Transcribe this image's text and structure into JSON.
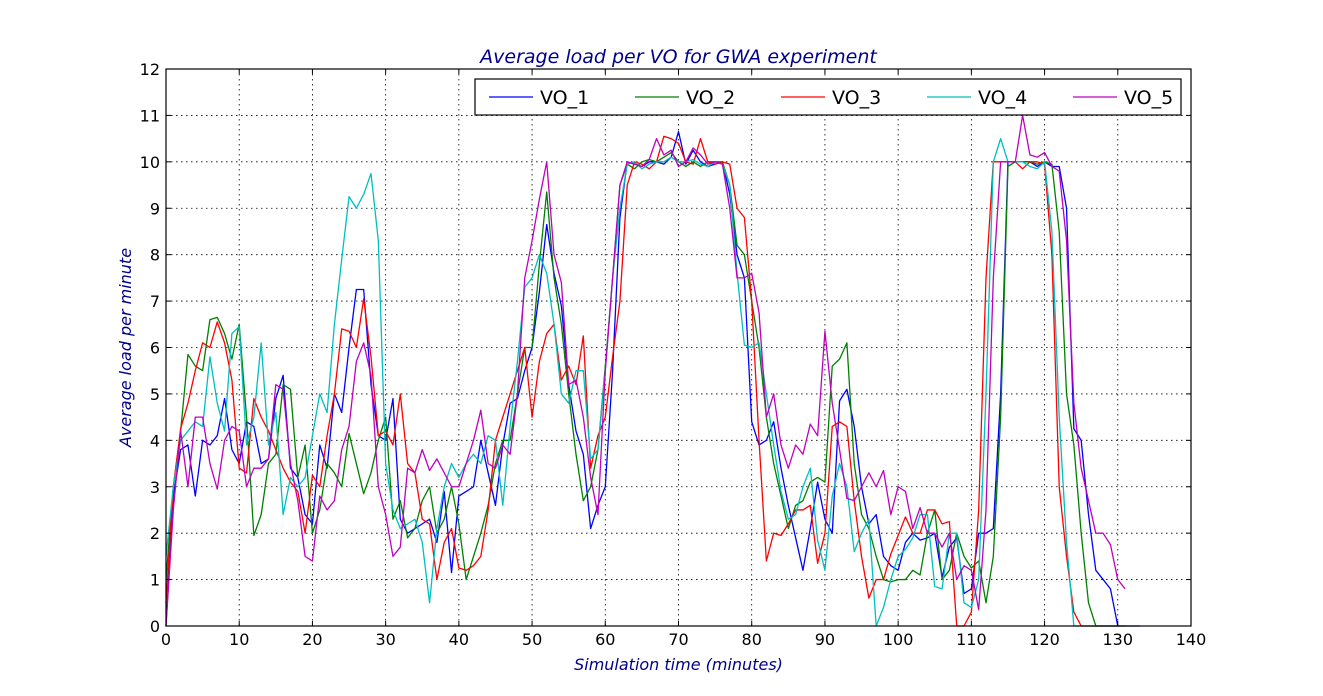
{
  "chart_data": {
    "type": "line",
    "title": "Average load per VO for GWA experiment",
    "xlabel": "Simulation time (minutes)",
    "ylabel": "Average load per minute",
    "xlim": [
      0,
      140
    ],
    "ylim": [
      0,
      12
    ],
    "x_ticks": [
      "0",
      "10",
      "20",
      "30",
      "40",
      "50",
      "60",
      "70",
      "80",
      "90",
      "100",
      "110",
      "120",
      "130",
      "140"
    ],
    "y_ticks": [
      "0",
      "1",
      "2",
      "3",
      "4",
      "5",
      "6",
      "7",
      "8",
      "9",
      "10",
      "11",
      "12"
    ],
    "grid": true,
    "legend_position": "top-right",
    "series": [
      {
        "name": "VO_1",
        "color": "#0000ff",
        "values": [
          0,
          2.8,
          3.8,
          3.9,
          2.8,
          4.0,
          3.9,
          4.1,
          4.9,
          3.8,
          3.5,
          4.4,
          4.3,
          3.5,
          3.6,
          4.9,
          5.4,
          3.4,
          3.2,
          2.4,
          2.2,
          3.9,
          3.4,
          5.0,
          4.6,
          6.0,
          7.25,
          7.25,
          5.2,
          4.1,
          4.0,
          4.9,
          2.3,
          2.0,
          2.1,
          2.2,
          2.3,
          1.8,
          2.9,
          1.15,
          2.8,
          2.9,
          3.0,
          4.0,
          3.3,
          2.6,
          3.9,
          4.8,
          4.9,
          5.5,
          6.0,
          7.2,
          8.65,
          7.6,
          6.9,
          5.2,
          4.2,
          3.7,
          2.1,
          2.6,
          3.0,
          5.5,
          8.8,
          10.0,
          9.95,
          9.9,
          10.0,
          10.0,
          9.95,
          10.1,
          10.65,
          9.95,
          10.25,
          10.0,
          9.9,
          9.95,
          10.0,
          9.3,
          8.0,
          7.5,
          4.4,
          3.9,
          4.0,
          4.4,
          3.4,
          2.6,
          1.9,
          1.2,
          2.1,
          3.1,
          2.3,
          2.0,
          4.85,
          5.1,
          4.3,
          3.0,
          2.2,
          2.4,
          1.5,
          1.3,
          1.2,
          1.8,
          2.0,
          1.85,
          1.9,
          2.0,
          1.05,
          1.7,
          1.9,
          0.7,
          0.8,
          2.0,
          2.0,
          2.1,
          5.0,
          10.0,
          10.0,
          10.0,
          10.0,
          9.9,
          10.0,
          9.9,
          9.9,
          9.0,
          4.25,
          4.0,
          2.4,
          1.2,
          1.0,
          0.8,
          0,
          0,
          0,
          0
        ]
      },
      {
        "name": "VO_2",
        "color": "#008000",
        "values": [
          1.0,
          3.0,
          4.2,
          5.85,
          5.6,
          5.5,
          6.6,
          6.65,
          6.3,
          5.75,
          6.5,
          4.5,
          1.95,
          2.4,
          3.5,
          3.7,
          5.2,
          5.1,
          3.2,
          3.9,
          2.0,
          2.5,
          3.5,
          3.3,
          3.0,
          4.15,
          3.5,
          2.85,
          3.3,
          4.0,
          4.5,
          2.3,
          2.7,
          1.9,
          2.1,
          2.7,
          3.0,
          2.0,
          2.3,
          3.0,
          2.2,
          1.0,
          1.5,
          2.0,
          2.6,
          3.5,
          4.0,
          4.0,
          5.0,
          6.0,
          6.0,
          7.8,
          9.35,
          7.5,
          6.5,
          5.0,
          3.7,
          2.7,
          3.0,
          3.8,
          5.6,
          7.5,
          9.5,
          9.95,
          9.85,
          10.0,
          10.05,
          10.0,
          10.1,
          10.2,
          10.0,
          9.9,
          10.0,
          9.9,
          10.0,
          10.0,
          10.0,
          9.5,
          8.2,
          8.0,
          7.0,
          6.0,
          4.5,
          3.5,
          2.8,
          2.1,
          2.6,
          2.7,
          3.1,
          3.2,
          3.1,
          5.6,
          5.75,
          6.1,
          3.5,
          2.4,
          2.1,
          1.5,
          1.0,
          0.95,
          1.0,
          1.0,
          1.2,
          1.1,
          2.0,
          2.5,
          1.0,
          1.2,
          2.0,
          1.5,
          1.25,
          1.4,
          0.5,
          1.5,
          4.5,
          9.9,
          10.0,
          10.0,
          10.0,
          9.95,
          10.0,
          9.95,
          8.5,
          5.0,
          3.9,
          2.0,
          0.5,
          0,
          0,
          0,
          0,
          0
        ]
      },
      {
        "name": "VO_3",
        "color": "#ff0000",
        "values": [
          0.5,
          3.0,
          4.25,
          4.8,
          5.5,
          6.1,
          6.0,
          6.55,
          6.1,
          5.3,
          3.4,
          3.3,
          4.9,
          4.5,
          4.2,
          3.8,
          3.4,
          3.1,
          2.9,
          2.0,
          3.25,
          3.0,
          4.1,
          5.0,
          6.4,
          6.35,
          6.0,
          7.05,
          5.8,
          4.1,
          4.2,
          3.9,
          5.0,
          3.5,
          3.3,
          2.3,
          2.2,
          1.0,
          1.8,
          2.1,
          1.25,
          1.2,
          1.3,
          1.5,
          2.5,
          4.0,
          4.5,
          5.0,
          5.5,
          6.0,
          4.5,
          5.7,
          6.3,
          6.5,
          5.3,
          5.6,
          5.2,
          6.25,
          3.4,
          4.1,
          4.5,
          5.8,
          7.0,
          9.5,
          10.0,
          9.95,
          9.85,
          10.0,
          10.55,
          10.5,
          10.4,
          10.0,
          9.95,
          10.5,
          10.0,
          9.95,
          10.0,
          9.95,
          9.0,
          8.8,
          7.0,
          4.0,
          1.4,
          2.0,
          1.95,
          2.2,
          2.5,
          2.5,
          2.6,
          1.35,
          2.0,
          4.3,
          4.4,
          4.3,
          2.7,
          1.5,
          0.6,
          1.0,
          1.0,
          1.55,
          1.95,
          2.35,
          2.0,
          2.0,
          2.5,
          2.5,
          2.2,
          2.25,
          0,
          0,
          0.3,
          2.5,
          7.5,
          10.0,
          10.0,
          10.0,
          10.0,
          9.85,
          10.0,
          10.0,
          9.95,
          8.0,
          3.0,
          1.5,
          0.3,
          0,
          0,
          0,
          0,
          0,
          0
        ]
      },
      {
        "name": "VO_4",
        "color": "#00bfbf",
        "values": [
          1.5,
          3.0,
          4.0,
          4.2,
          4.4,
          4.3,
          5.8,
          4.8,
          4.2,
          6.3,
          6.45,
          3.9,
          4.5,
          6.1,
          3.9,
          4.6,
          2.4,
          3.2,
          3.0,
          3.2,
          4.1,
          5.0,
          4.6,
          6.5,
          7.9,
          9.25,
          9.0,
          9.3,
          9.75,
          8.3,
          3.5,
          2.5,
          2.1,
          2.2,
          2.3,
          1.8,
          0.5,
          2.1,
          3.0,
          3.5,
          3.2,
          3.5,
          3.7,
          3.5,
          4.1,
          4.0,
          2.6,
          4.3,
          5.7,
          7.3,
          7.5,
          8.0,
          7.6,
          6.5,
          5.0,
          4.8,
          5.5,
          5.5,
          3.6,
          3.8,
          5.5,
          7.5,
          9.0,
          9.95,
          10.0,
          9.85,
          9.95,
          10.0,
          10.0,
          10.1,
          10.0,
          10.0,
          10.05,
          9.95,
          9.9,
          10.0,
          9.95,
          9.5,
          7.6,
          6.05,
          6.0,
          6.1,
          5.0,
          3.9,
          2.9,
          2.3,
          2.4,
          3.0,
          3.4,
          1.85,
          1.2,
          2.8,
          3.5,
          3.0,
          1.6,
          2.0,
          2.3,
          0,
          0.4,
          1.0,
          1.5,
          1.65,
          1.9,
          2.4,
          2.4,
          0.85,
          0.8,
          2.0,
          2.0,
          0.5,
          0.4,
          1.0,
          5.0,
          10.0,
          10.5,
          10.0,
          10.0,
          10.0,
          9.9,
          9.85,
          10.0,
          8.5,
          4.5,
          1.8,
          0,
          0,
          0,
          0,
          0,
          0,
          0
        ]
      },
      {
        "name": "VO_5",
        "color": "#bf00bf",
        "values": [
          0,
          2.5,
          4.2,
          3.0,
          4.5,
          4.5,
          3.5,
          2.95,
          4.0,
          4.3,
          4.2,
          3.0,
          3.4,
          3.4,
          3.6,
          5.2,
          5.1,
          3.5,
          2.7,
          1.5,
          1.4,
          2.8,
          2.5,
          2.7,
          3.8,
          4.3,
          5.7,
          6.1,
          5.4,
          3.0,
          2.4,
          1.5,
          1.7,
          3.4,
          3.3,
          3.8,
          3.35,
          3.6,
          3.3,
          3.0,
          3.0,
          3.5,
          4.0,
          4.65,
          3.5,
          3.4,
          3.9,
          3.7,
          5.0,
          7.5,
          8.3,
          9.2,
          10.0,
          8.0,
          7.4,
          5.2,
          5.3,
          4.5,
          3.2,
          2.4,
          5.5,
          7.5,
          9.5,
          10.0,
          9.95,
          9.9,
          10.05,
          10.5,
          10.15,
          10.25,
          9.9,
          10.0,
          10.3,
          10.15,
          9.95,
          10.0,
          9.95,
          9.0,
          7.5,
          7.5,
          7.6,
          6.75,
          4.5,
          5.0,
          3.9,
          3.4,
          3.9,
          3.7,
          4.35,
          4.1,
          6.35,
          4.8,
          3.8,
          2.75,
          2.7,
          3.0,
          3.3,
          3.0,
          3.35,
          2.4,
          3.0,
          2.9,
          2.1,
          2.55,
          2.0,
          2.0,
          1.7,
          2.0,
          1.0,
          1.3,
          1.2,
          0.35,
          2.5,
          7.5,
          10.0,
          10.0,
          10.0,
          11.0,
          10.15,
          10.1,
          10.2,
          9.9,
          9.8,
          8.3,
          4.8,
          3.4,
          2.7,
          2.0,
          2.0,
          1.75,
          1.0,
          0.8
        ]
      }
    ]
  }
}
